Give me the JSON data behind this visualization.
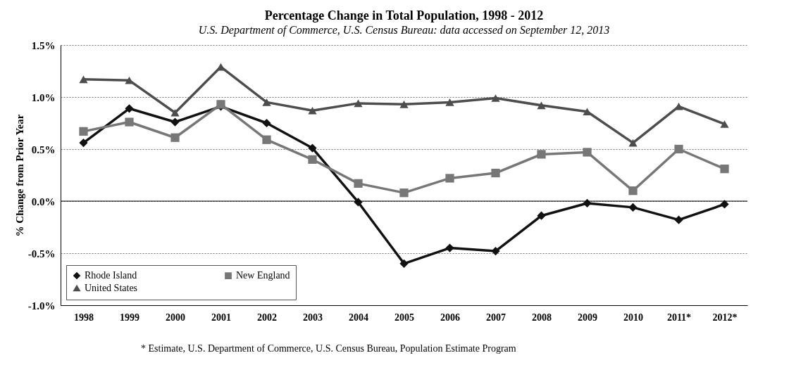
{
  "chart_data": {
    "type": "line",
    "title": "Percentage Change in Total Population, 1998 - 2012",
    "subtitle": "U.S. Department of Commerce, U.S. Census Bureau: data accessed on September 12, 2013",
    "ylabel": "% Change from Prior Year",
    "categories": [
      "1998",
      "1999",
      "2000",
      "2001",
      "2002",
      "2003",
      "2004",
      "2005",
      "2006",
      "2007",
      "2008",
      "2009",
      "2010",
      "2011*",
      "2012*"
    ],
    "series": [
      {
        "name": "Rhode Island",
        "color": "#111111",
        "marker": "diamond",
        "values": [
          0.56,
          0.89,
          0.76,
          0.91,
          0.75,
          0.51,
          -0.01,
          -0.6,
          -0.45,
          -0.48,
          -0.14,
          -0.02,
          -0.06,
          -0.18,
          -0.03
        ]
      },
      {
        "name": "New England",
        "color": "#777777",
        "marker": "square",
        "values": [
          0.67,
          0.76,
          0.61,
          0.93,
          0.59,
          0.4,
          0.17,
          0.08,
          0.22,
          0.27,
          0.45,
          0.47,
          0.1,
          0.5,
          0.31
        ]
      },
      {
        "name": "United States",
        "color": "#4d4d4d",
        "marker": "triangle",
        "values": [
          1.17,
          1.16,
          0.85,
          1.29,
          0.95,
          0.87,
          0.94,
          0.93,
          0.95,
          0.99,
          0.92,
          0.86,
          0.56,
          0.91,
          0.74
        ]
      }
    ],
    "ylim": [
      -1,
      1.5
    ],
    "yticks": [
      {
        "value": -1,
        "label": "-1.0%"
      },
      {
        "value": -0.5,
        "label": "-0.5%"
      },
      {
        "value": 0,
        "label": "0.0%"
      },
      {
        "value": 0.5,
        "label": "0.5%"
      },
      {
        "value": 1,
        "label": "1.0%"
      },
      {
        "value": 1.5,
        "label": "1.5%"
      }
    ],
    "grid": "y",
    "line_style": "solid",
    "legend": "bottom left",
    "ref_lines": [
      {
        "axis": "y",
        "value": 0,
        "color": "#000000"
      }
    ],
    "annotations": [
      "* Estimate, U.S. Department of Commerce, U.S. Census Bureau, Population Estimate Program"
    ]
  }
}
